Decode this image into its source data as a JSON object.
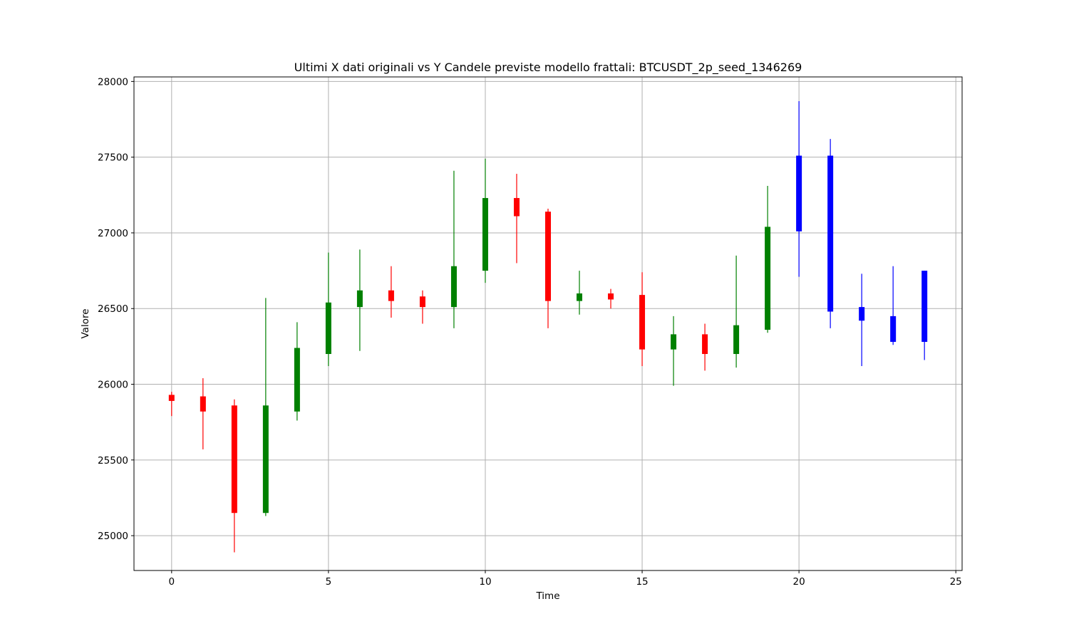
{
  "chart_data": {
    "type": "candlestick",
    "title": "Ultimi X dati originali vs Y Candele previste modello frattali: BTCUSDT_2p_seed_1346269",
    "xlabel": "Time",
    "ylabel": "Valore",
    "xlim": [
      -1.2,
      25.2
    ],
    "ylim": [
      24770,
      28030
    ],
    "x_ticks": [
      0,
      5,
      10,
      15,
      20,
      25
    ],
    "y_ticks": [
      25000,
      25500,
      26000,
      26500,
      27000,
      27500,
      28000
    ],
    "grid": true,
    "colors": {
      "up": "#008000",
      "down": "#ff0000",
      "forecast": "#0000ff",
      "grid": "#b0b0b0",
      "frame": "#000000"
    },
    "candles": [
      {
        "x": 0,
        "open": 25930,
        "close": 25890,
        "high": 25950,
        "low": 25790,
        "kind": "down"
      },
      {
        "x": 1,
        "open": 25920,
        "close": 25820,
        "high": 26040,
        "low": 25570,
        "kind": "down"
      },
      {
        "x": 2,
        "open": 25860,
        "close": 25150,
        "high": 25900,
        "low": 24890,
        "kind": "down"
      },
      {
        "x": 3,
        "open": 25150,
        "close": 25860,
        "high": 26570,
        "low": 25130,
        "kind": "up"
      },
      {
        "x": 4,
        "open": 25820,
        "close": 26240,
        "high": 26410,
        "low": 25760,
        "kind": "up"
      },
      {
        "x": 5,
        "open": 26200,
        "close": 26540,
        "high": 26870,
        "low": 26120,
        "kind": "up"
      },
      {
        "x": 6,
        "open": 26510,
        "close": 26620,
        "high": 26890,
        "low": 26220,
        "kind": "up"
      },
      {
        "x": 7,
        "open": 26620,
        "close": 26550,
        "high": 26780,
        "low": 26440,
        "kind": "down"
      },
      {
        "x": 8,
        "open": 26580,
        "close": 26510,
        "high": 26620,
        "low": 26400,
        "kind": "down"
      },
      {
        "x": 9,
        "open": 26510,
        "close": 26780,
        "high": 27410,
        "low": 26370,
        "kind": "up"
      },
      {
        "x": 10,
        "open": 26750,
        "close": 27230,
        "high": 27490,
        "low": 26670,
        "kind": "up"
      },
      {
        "x": 11,
        "open": 27230,
        "close": 27110,
        "high": 27390,
        "low": 26800,
        "kind": "down"
      },
      {
        "x": 12,
        "open": 27140,
        "close": 26550,
        "high": 27160,
        "low": 26370,
        "kind": "down"
      },
      {
        "x": 13,
        "open": 26550,
        "close": 26600,
        "high": 26750,
        "low": 26460,
        "kind": "up"
      },
      {
        "x": 14,
        "open": 26600,
        "close": 26560,
        "high": 26630,
        "low": 26500,
        "kind": "down"
      },
      {
        "x": 15,
        "open": 26590,
        "close": 26230,
        "high": 26740,
        "low": 26120,
        "kind": "down"
      },
      {
        "x": 16,
        "open": 26230,
        "close": 26330,
        "high": 26450,
        "low": 25990,
        "kind": "up"
      },
      {
        "x": 17,
        "open": 26330,
        "close": 26200,
        "high": 26400,
        "low": 26090,
        "kind": "down"
      },
      {
        "x": 18,
        "open": 26200,
        "close": 26390,
        "high": 26850,
        "low": 26110,
        "kind": "up"
      },
      {
        "x": 19,
        "open": 26360,
        "close": 27040,
        "high": 27310,
        "low": 26340,
        "kind": "up"
      },
      {
        "x": 20,
        "open": 27010,
        "close": 27510,
        "high": 27870,
        "low": 26710,
        "kind": "forecast"
      },
      {
        "x": 21,
        "open": 27510,
        "close": 26480,
        "high": 27620,
        "low": 26370,
        "kind": "forecast"
      },
      {
        "x": 22,
        "open": 26510,
        "close": 26420,
        "high": 26730,
        "low": 26120,
        "kind": "forecast"
      },
      {
        "x": 23,
        "open": 26450,
        "close": 26280,
        "high": 26780,
        "low": 26260,
        "kind": "forecast"
      },
      {
        "x": 24,
        "open": 26280,
        "close": 26750,
        "high": 26750,
        "low": 26160,
        "kind": "forecast"
      }
    ]
  }
}
